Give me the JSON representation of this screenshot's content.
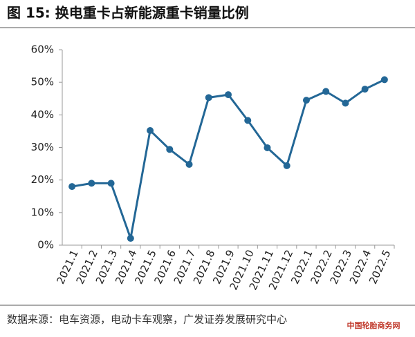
{
  "chart_data": {
    "type": "line",
    "title": "图 15: 换电重卡占新能源重卡销量比例",
    "source": "数据来源：电车资源，电动卡车观察，广发证券发展研究中心",
    "watermark": "中国轮胎商务网",
    "categories": [
      "2021.1",
      "2021.2",
      "2021.3",
      "2021.4",
      "2021.5",
      "2021.6",
      "2021.7",
      "2021.8",
      "2021.9",
      "2021.10",
      "2021.11",
      "2021.12",
      "2022.1",
      "2022.2",
      "2022.3",
      "2022.4",
      "2022.5"
    ],
    "values": [
      18.0,
      19.0,
      19.0,
      2.1,
      35.2,
      29.4,
      24.8,
      45.3,
      46.2,
      38.3,
      29.9,
      24.4,
      44.5,
      47.2,
      43.6,
      47.9,
      50.8
    ],
    "color": "#236796",
    "ylim": [
      0,
      60
    ],
    "yticks": [
      {
        "value": 0,
        "label": "0%"
      },
      {
        "value": 10,
        "label": "10%"
      },
      {
        "value": 20,
        "label": "20%"
      },
      {
        "value": 30,
        "label": "30%"
      },
      {
        "value": 40,
        "label": "40%"
      },
      {
        "value": 50,
        "label": "50%"
      },
      {
        "value": 60,
        "label": "60%"
      }
    ]
  }
}
